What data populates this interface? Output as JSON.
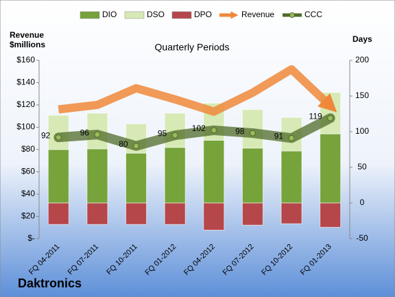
{
  "chart_data": {
    "type": "combo",
    "title": "Quarterly Periods",
    "y_label": [
      "Revenue",
      "$millions"
    ],
    "y2_label": "Days",
    "caption": "Daktronics",
    "categories": [
      "FQ 04-2011",
      "FQ 07-2011",
      "FQ 10-2011",
      "FQ 01-2012",
      "FQ 04-2012",
      "FQ 07-2012",
      "FQ 10-2012",
      "FQ 01-2013"
    ],
    "ylim": [
      0,
      160
    ],
    "yticks": [
      {
        "value": 0,
        "label": "$-"
      },
      {
        "value": 20,
        "label": "$20"
      },
      {
        "value": 40,
        "label": "$40"
      },
      {
        "value": 60,
        "label": "$60"
      },
      {
        "value": 80,
        "label": "$80"
      },
      {
        "value": 100,
        "label": "$100"
      },
      {
        "value": 120,
        "label": "$120"
      },
      {
        "value": 140,
        "label": "$140"
      },
      {
        "value": 160,
        "label": "$160"
      }
    ],
    "y2lim": [
      -50,
      200
    ],
    "y2ticks": [
      -50,
      0,
      50,
      100,
      150,
      200
    ],
    "series": [
      {
        "name": "DIO",
        "color": "#76a33a",
        "kind": "bar",
        "axis": "y2",
        "values": [
          75,
          76,
          70,
          78,
          88,
          77,
          73,
          97
        ]
      },
      {
        "name": "DSO",
        "color": "#d7e9b5",
        "kind": "bar",
        "axis": "y2",
        "values": [
          48,
          50,
          41,
          48,
          52,
          54,
          47,
          58
        ]
      },
      {
        "name": "DPO",
        "color": "#b5464a",
        "kind": "bar",
        "axis": "y2",
        "values": [
          -30,
          -30,
          -30,
          -30,
          -38,
          -31,
          -29,
          -34
        ]
      },
      {
        "name": "Revenue",
        "color": "#f0883a",
        "kind": "arrow",
        "axis": "y",
        "values": [
          116,
          120,
          135,
          125,
          114,
          131,
          152,
          119
        ]
      },
      {
        "name": "CCC",
        "color": "#4f6b2a",
        "kind": "line",
        "axis": "y2",
        "values": [
          92,
          96,
          80,
          95,
          102,
          98,
          91,
          119
        ]
      }
    ]
  }
}
